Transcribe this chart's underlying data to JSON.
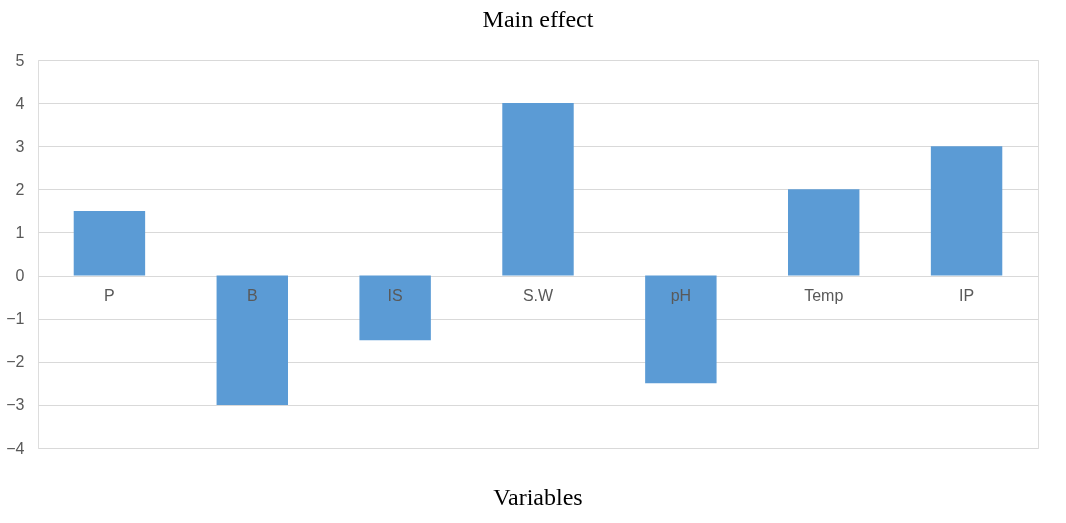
{
  "chart_data": {
    "type": "bar",
    "title": "Main effect",
    "xlabel": "Variables",
    "categories": [
      "P",
      "B",
      "IS",
      "S.W",
      "pH",
      "Temp",
      "IP"
    ],
    "values": [
      1.5,
      -3,
      -1.5,
      4,
      -2.5,
      2,
      3
    ],
    "color": "#5b9bd5",
    "ylim": [
      -4,
      5
    ],
    "yticks": [
      -4,
      -3,
      -2,
      -1,
      0,
      1,
      2,
      3,
      4,
      5
    ],
    "grid": "y"
  }
}
